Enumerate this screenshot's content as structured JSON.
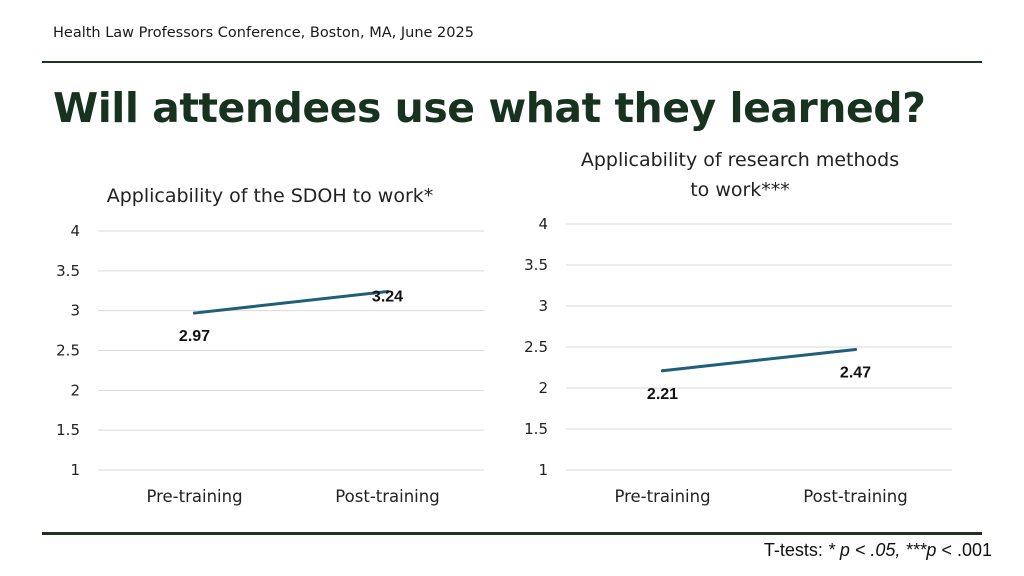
{
  "header": {
    "conference": "Health Law Professors Conference, Boston, MA, June 2025"
  },
  "slide_title": "Will attendees use what they learned?",
  "footnote": {
    "prefix": "T-tests: ",
    "sig1": "* p < .05, ***p",
    "suffix": " < .001"
  },
  "colors": {
    "line": "#1f5f7a",
    "rule": "#1f3320",
    "title": "#173320",
    "grid": "#d9d9d9"
  },
  "chart_data": [
    {
      "type": "line",
      "title_lines": [
        "Applicability of the SDOH to work*"
      ],
      "categories": [
        "Pre-training",
        "Post-training"
      ],
      "values": [
        2.97,
        3.24
      ],
      "data_labels": [
        "2.97",
        "3.24"
      ],
      "ylim": [
        1,
        4
      ],
      "yticks": [
        "1",
        "1.5",
        "2",
        "2.5",
        "3",
        "3.5",
        "4"
      ],
      "grid": true
    },
    {
      "type": "line",
      "title_lines": [
        "Applicability of research methods",
        "to work***"
      ],
      "categories": [
        "Pre-training",
        "Post-training"
      ],
      "values": [
        2.21,
        2.47
      ],
      "data_labels": [
        "2.21",
        "2.47"
      ],
      "ylim": [
        1,
        4
      ],
      "yticks": [
        "1",
        "1.5",
        "2",
        "2.5",
        "3",
        "3.5",
        "4"
      ],
      "grid": true
    }
  ]
}
